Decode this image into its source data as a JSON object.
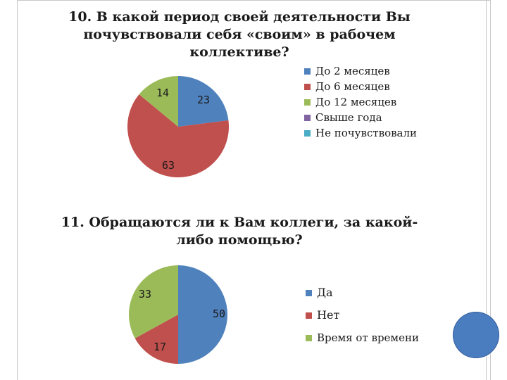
{
  "chart_data": [
    {
      "type": "pie",
      "title_lines": [
        "10. В какой период своей деятельности Вы",
        "почувствовали себя «своим» в рабочем",
        "коллективе?"
      ],
      "categories": [
        "До 2 месяцев",
        "До 6 месяцев",
        "До 12 месяцев",
        "Свыше года",
        "Не почувствовали"
      ],
      "values": [
        23,
        63,
        14,
        0,
        0
      ],
      "labels": [
        "23",
        "63",
        "14",
        "",
        ""
      ],
      "colors": [
        "#4f81bd",
        "#c0504d",
        "#9bbb59",
        "#8064a2",
        "#4bacc6"
      ],
      "legend": "right"
    },
    {
      "type": "pie",
      "title_lines": [
        "11. Обращаются ли к Вам коллеги, за какой-",
        "либо помощью?"
      ],
      "categories": [
        "Да",
        "Нет",
        "Время от времени"
      ],
      "values": [
        50,
        17,
        33
      ],
      "labels": [
        "50",
        "17",
        "33"
      ],
      "colors": [
        "#4f81bd",
        "#c0504d",
        "#9bbb59"
      ],
      "legend": "right"
    }
  ]
}
